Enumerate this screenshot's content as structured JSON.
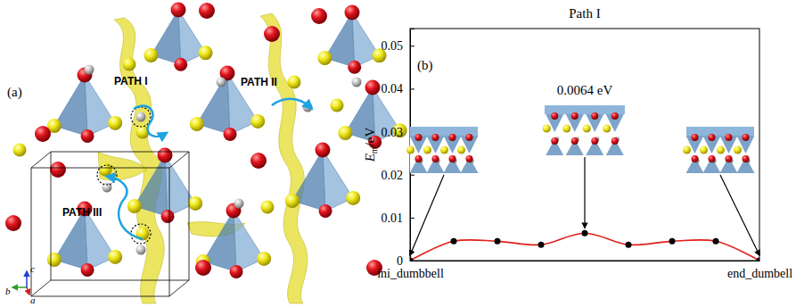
{
  "diagram": {
    "panel_label": "(a)",
    "paths": [
      "PATH I",
      "PATH II",
      "PATH III"
    ],
    "axes": [
      "b",
      "c",
      "a"
    ]
  },
  "chart_data": {
    "type": "line",
    "panel_label": "(b)",
    "title": "Path I",
    "y_label": [
      "E",
      "m",
      "/eV"
    ],
    "categories": [
      "ini_dumbbell",
      null,
      null,
      null,
      null,
      null,
      null,
      null,
      "end_dumbell"
    ],
    "values": [
      0,
      0.0045,
      0.0045,
      0.0037,
      0.0064,
      0.0037,
      0.0045,
      0.0045,
      0
    ],
    "color": "#e0201b",
    "marker": "circle",
    "ylim": [
      0,
      0.054
    ],
    "yticks": [
      0,
      0.01,
      0.02,
      0.03,
      0.04,
      0.05
    ],
    "annotations": [
      "0.0064 eV"
    ]
  }
}
